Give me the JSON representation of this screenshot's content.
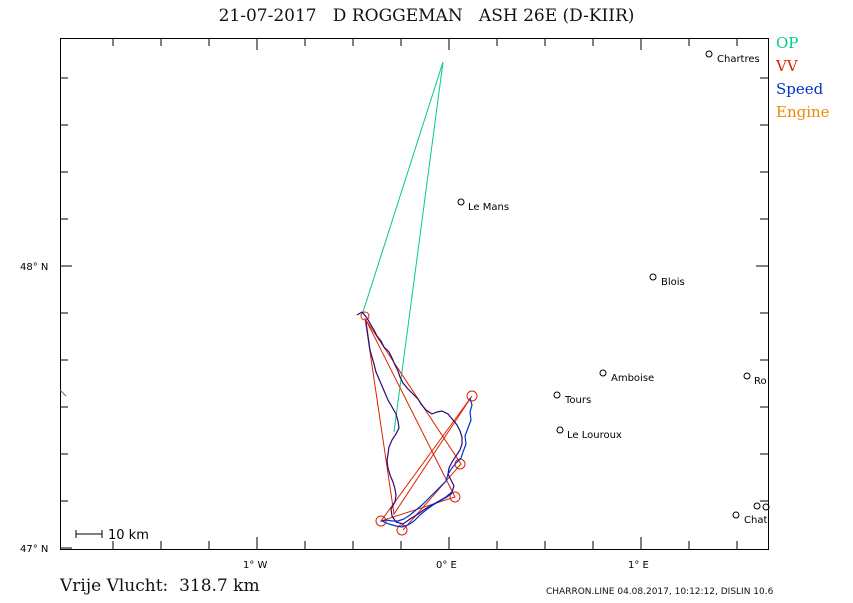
{
  "title": "21-07-2017   D ROGGEMAN   ASH 26E (D-KIIR)",
  "legend": [
    {
      "label": "OP",
      "color": "#00cc88"
    },
    {
      "label": "VV",
      "color": "#dd2200"
    },
    {
      "label": "Speed",
      "color": "#0033cc"
    },
    {
      "label": "Engine",
      "color": "#ee8800"
    }
  ],
  "axes": {
    "x_labels": [
      "1° W",
      "0° E",
      "1° E"
    ],
    "y_labels": [
      "48° N",
      "47° N"
    ]
  },
  "scale_bar": "10 km",
  "cities": [
    {
      "name": "Chartres"
    },
    {
      "name": "Le Mans"
    },
    {
      "name": "Blois"
    },
    {
      "name": "Amboise"
    },
    {
      "name": "Tours"
    },
    {
      "name": "Le Louroux"
    },
    {
      "name": "Ro"
    },
    {
      "name": "Chat"
    }
  ],
  "footer": {
    "distance": "Vrije Vlucht:  318.7 km",
    "credit": "CHARRON.LINE 04.08.2017, 10:12:12, DISLIN 10.6"
  }
}
